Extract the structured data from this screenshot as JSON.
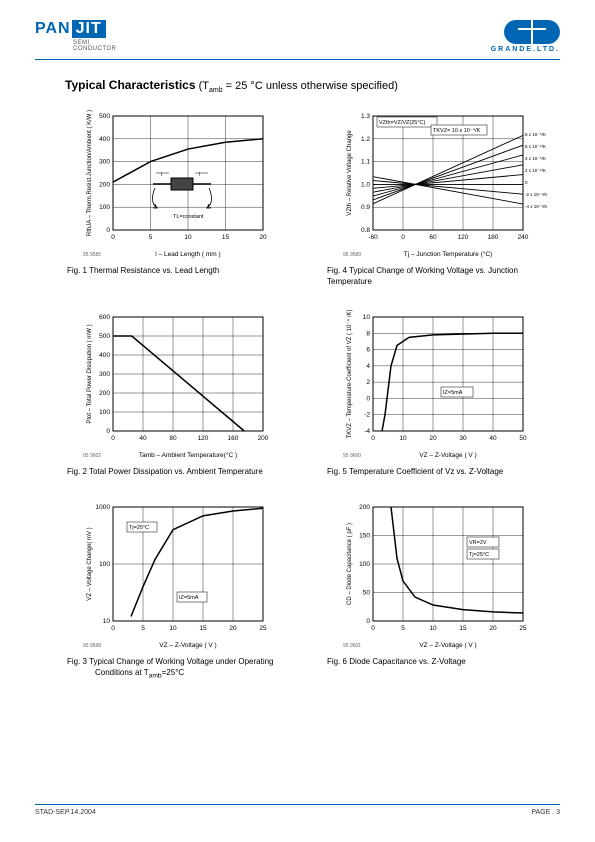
{
  "header": {
    "brand_left_a": "PAN",
    "brand_left_b": "JIT",
    "brand_left_sub": "SEMI\nCONDUCTOR",
    "brand_right": "GRANDE.LTD."
  },
  "title": {
    "main": "Typical Characteristics",
    "paren": "(T",
    "sub": "amb",
    "rest": " = 25 °C unless otherwise specified)"
  },
  "charts": {
    "fig1": {
      "ref": "95 9585",
      "caption": "Fig. 1   Thermal Resistance vs. Lead Length",
      "ylabel": "RthJA – Therm.Resist.Junction/Ambient ( K/W )",
      "xlabel": "l – Lead Length ( mm )",
      "xticks": [
        "0",
        "5",
        "10",
        "15",
        "20"
      ],
      "yticks": [
        "0",
        "100",
        "200",
        "300",
        "400",
        "500"
      ],
      "note": "TL=constant",
      "line": [
        [
          0,
          210
        ],
        [
          5,
          300
        ],
        [
          10,
          355
        ],
        [
          15,
          385
        ],
        [
          20,
          400
        ]
      ]
    },
    "fig4": {
      "ref": "95 9589",
      "caption": "Fig. 4   Typical Change of Working Voltage vs. Junction Temperature",
      "ylabel": "VZth – Relative Voltage Change",
      "xlabel": "Tj – Junction Temperature (°C)",
      "xticks": [
        "-60",
        "0",
        "60",
        "120",
        "180",
        "240"
      ],
      "yticks": [
        "0.8",
        "0.9",
        "1.0",
        "1.1",
        "1.2",
        "1.3"
      ],
      "formula": "VZth=VZ/VZ(25°C)",
      "labels": [
        "8 x 10⁻⁴/K",
        "6 x 10⁻⁴/K",
        "4 x 10⁻⁴/K",
        "2 x 10⁻⁴/K",
        "0",
        "-2 x 10⁻⁴/K",
        "-4 x 10⁻⁴/K"
      ],
      "tk": "TKVZ= 10 x 10⁻⁴/K",
      "lines": [
        [
          [
            -60,
            0.915
          ],
          [
            240,
            1.215
          ]
        ],
        [
          [
            -60,
            0.932
          ],
          [
            240,
            1.172
          ]
        ],
        [
          [
            -60,
            0.949
          ],
          [
            240,
            1.129
          ]
        ],
        [
          [
            -60,
            0.966
          ],
          [
            240,
            1.086
          ]
        ],
        [
          [
            -60,
            0.983
          ],
          [
            240,
            1.043
          ]
        ],
        [
          [
            -60,
            1.0
          ],
          [
            240,
            1.0
          ]
        ],
        [
          [
            -60,
            1.017
          ],
          [
            240,
            0.957
          ]
        ],
        [
          [
            -60,
            1.034
          ],
          [
            240,
            0.914
          ]
        ]
      ]
    },
    "fig2": {
      "ref": "95 9602",
      "caption": "Fig. 2   Total Power Dissipation vs. Ambient Temperature",
      "ylabel": "Ptot – Total Power Dissipation ( mW )",
      "xlabel": "Tamb – Ambient Temperature(°C )",
      "xticks": [
        "0",
        "40",
        "80",
        "120",
        "160",
        "200"
      ],
      "yticks": [
        "0",
        "100",
        "200",
        "300",
        "400",
        "500",
        "600"
      ],
      "line": [
        [
          0,
          500
        ],
        [
          25,
          500
        ],
        [
          175,
          0
        ]
      ]
    },
    "fig5": {
      "ref": "95 9600",
      "caption": "Fig. 5   Temperature Coefficient of Vz vs. Z-Voltage",
      "ylabel": "TKVZ – Temperature-Coefficient of VZ  ( 10⁻⁴ /K)",
      "xlabel": "VZ – Z-Voltage ( V )",
      "xticks": [
        "0",
        "10",
        "20",
        "30",
        "40",
        "50"
      ],
      "yticks": [
        "-4",
        "-2",
        "0",
        "2",
        "4",
        "6",
        "8",
        "10"
      ],
      "note": "IZ=5mA",
      "line": [
        [
          3,
          -4
        ],
        [
          4,
          -2
        ],
        [
          5,
          1
        ],
        [
          6,
          4
        ],
        [
          8,
          6.5
        ],
        [
          12,
          7.5
        ],
        [
          20,
          7.8
        ],
        [
          40,
          8
        ],
        [
          50,
          8
        ]
      ]
    },
    "fig3": {
      "ref": "95 9598",
      "caption": "Fig. 3   Typical Change of Working Voltage under Operating Conditions at Tamb=25°C",
      "ylabel": "VZ – Voltage Change( mV )",
      "xlabel": "VZ – Z-Voltage ( V )",
      "xticks": [
        "0",
        "5",
        "10",
        "15",
        "20",
        "25"
      ],
      "yticks": [
        "10",
        "100",
        "1000"
      ],
      "note1": "Tj=25°C",
      "note2": "IZ=5mA",
      "line": [
        [
          3,
          12
        ],
        [
          5,
          40
        ],
        [
          7,
          120
        ],
        [
          10,
          400
        ],
        [
          15,
          700
        ],
        [
          20,
          850
        ],
        [
          25,
          950
        ]
      ],
      "ylog": true
    },
    "fig6": {
      "ref": "95 9601",
      "caption": "Fig. 6   Diode Capacitance vs. Z-Voltage",
      "ylabel": "CD – Diode Capacitance ( pF )",
      "xlabel": "VZ – Z-Voltage ( V )",
      "xticks": [
        "0",
        "5",
        "10",
        "15",
        "20",
        "25"
      ],
      "yticks": [
        "0",
        "50",
        "100",
        "150",
        "200"
      ],
      "note1": "VR=2V",
      "note2": "Tj=25°C",
      "line": [
        [
          3,
          200
        ],
        [
          4,
          110
        ],
        [
          5,
          70
        ],
        [
          7,
          42
        ],
        [
          10,
          28
        ],
        [
          15,
          20
        ],
        [
          20,
          16
        ],
        [
          25,
          14
        ]
      ]
    }
  },
  "footer": {
    "left": "STAD-SEP.14.2004",
    "right": "PAGE .  3"
  },
  "colors": {
    "brand": "#0066b3",
    "axis": "#000000",
    "grid": "#000000",
    "line": "#000000"
  }
}
